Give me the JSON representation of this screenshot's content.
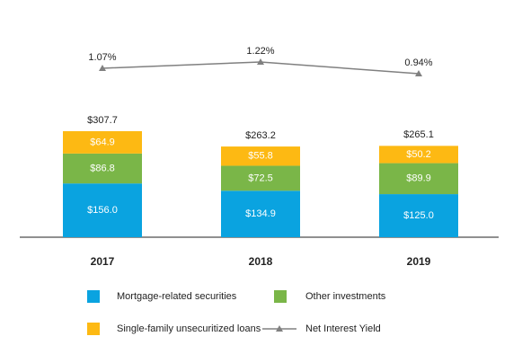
{
  "chart_data": {
    "type": "bar",
    "stacked": true,
    "categories": [
      "2017",
      "2018",
      "2019"
    ],
    "series": [
      {
        "name": "Mortgage-related securities",
        "color": "#0aa3e0",
        "values": [
          156.0,
          134.9,
          125.0
        ],
        "value_labels": [
          "$156.0",
          "$134.9",
          "$125.0"
        ]
      },
      {
        "name": "Other investments",
        "color": "#7ab648",
        "values": [
          86.8,
          72.5,
          89.9
        ],
        "value_labels": [
          "$86.8",
          "$72.5",
          "$89.9"
        ]
      },
      {
        "name": "Single-family unsecuritized loans",
        "color": "#fdb913",
        "values": [
          64.9,
          55.8,
          50.2
        ],
        "value_labels": [
          "$64.9",
          "$55.8",
          "$50.2"
        ]
      }
    ],
    "totals": [
      307.7,
      263.2,
      265.1
    ],
    "total_labels": [
      "$307.7",
      "$263.2",
      "$265.1"
    ],
    "line_series": {
      "type": "line",
      "name": "Net Interest Yield",
      "color": "#808080",
      "values": [
        1.07,
        1.22,
        0.94
      ],
      "value_labels": [
        "1.07%",
        "1.22%",
        "0.94%"
      ]
    }
  }
}
